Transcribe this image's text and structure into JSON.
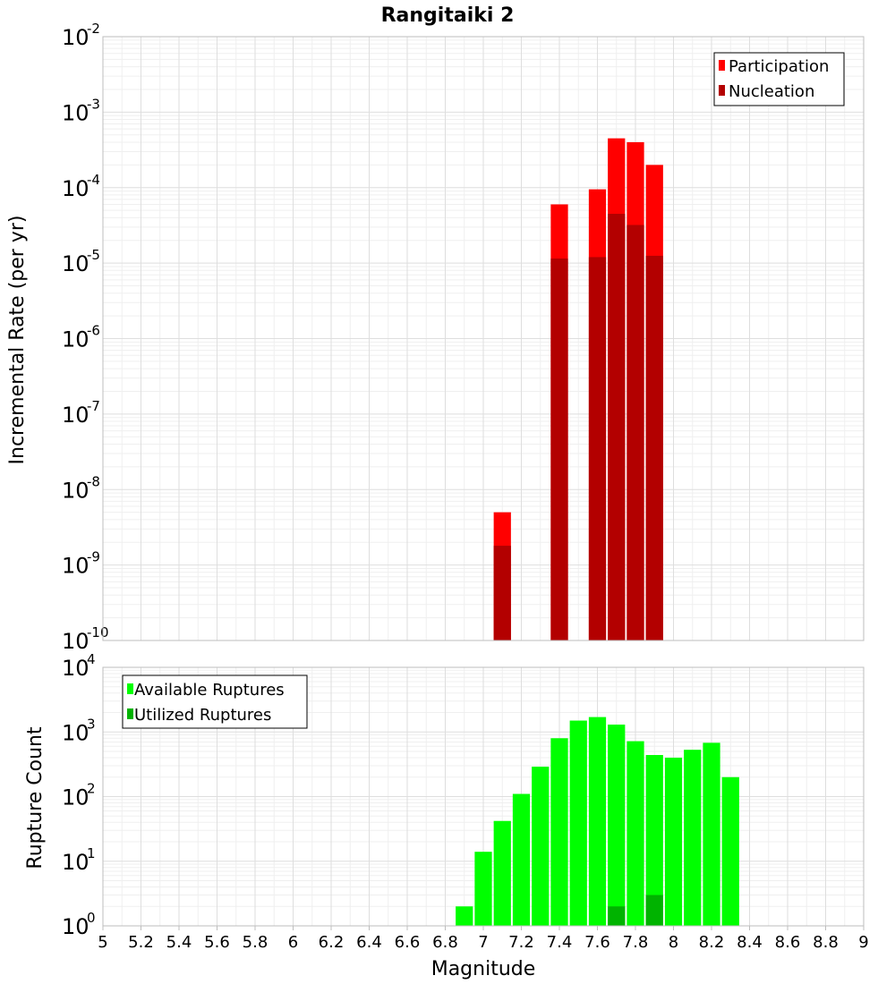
{
  "chart_data": [
    {
      "type": "bar",
      "title": "Rangitaiki 2",
      "xlabel": "",
      "ylabel": "Incremental Rate (per yr)",
      "yscale": "log",
      "xlim": [
        5,
        9
      ],
      "ylim_exponents": [
        -10,
        -2
      ],
      "legend_position": "top-right",
      "series": [
        {
          "name": "Participation",
          "color": "#ff0000",
          "x": [
            7.1,
            7.4,
            7.6,
            7.7,
            7.8,
            7.9
          ],
          "values": [
            5e-09,
            6e-05,
            9.5e-05,
            0.00045,
            0.0004,
            0.0002
          ]
        },
        {
          "name": "Nucleation",
          "color": "#b30000",
          "x": [
            7.1,
            7.4,
            7.6,
            7.7,
            7.8,
            7.9
          ],
          "values": [
            1.8e-09,
            1.15e-05,
            1.2e-05,
            4.5e-05,
            3.2e-05,
            1.25e-05
          ]
        }
      ]
    },
    {
      "type": "bar",
      "title": "",
      "xlabel": "Magnitude",
      "ylabel": "Rupture Count",
      "yscale": "log",
      "xlim": [
        5,
        9
      ],
      "ylim_exponents": [
        0,
        4
      ],
      "legend_position": "top-left",
      "x_ticks": [
        "5",
        "5.2",
        "5.4",
        "5.6",
        "5.8",
        "6",
        "6.2",
        "6.4",
        "6.6",
        "6.8",
        "7",
        "7.2",
        "7.4",
        "7.6",
        "7.8",
        "8",
        "8.2",
        "8.4",
        "8.6",
        "8.8",
        "9"
      ],
      "series": [
        {
          "name": "Available Ruptures",
          "color": "#00ff00",
          "x": [
            6.7,
            6.9,
            7.0,
            7.1,
            7.2,
            7.3,
            7.4,
            7.5,
            7.6,
            7.7,
            7.8,
            7.9,
            8.0,
            8.1,
            8.2,
            8.3
          ],
          "values": [
            1,
            2,
            14,
            42,
            110,
            290,
            800,
            1500,
            1700,
            1300,
            720,
            440,
            400,
            530,
            680,
            200
          ]
        },
        {
          "name": "Utilized Ruptures",
          "color": "#00b300",
          "x": [
            7.1,
            7.4,
            7.6,
            7.7,
            7.8,
            7.9
          ],
          "values": [
            1,
            1,
            1,
            2,
            1,
            3
          ]
        }
      ]
    }
  ]
}
